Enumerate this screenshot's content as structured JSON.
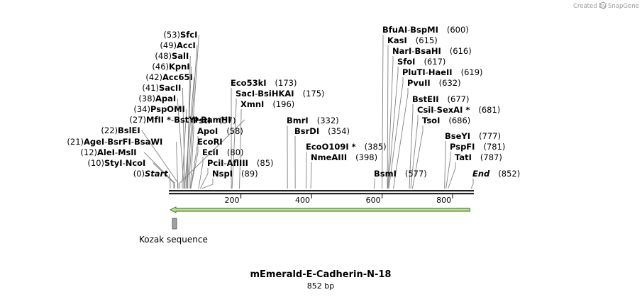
{
  "credit": {
    "created_by": "Created by",
    "brand": "SnapGene"
  },
  "plasmid": {
    "name": "mEmerald-E-Cadherin-N-18",
    "length": "852 bp",
    "total_bp": 852
  },
  "axis": {
    "ticks": [
      200,
      400,
      600,
      800
    ]
  },
  "features": [
    {
      "label": "Kozak sequence",
      "type": "misc",
      "start": 0,
      "end": 10
    },
    {
      "label": "",
      "type": "orf",
      "start": 0,
      "end": 849,
      "direction": "reverse",
      "color": "#b9e08c"
    }
  ],
  "sites": [
    {
      "group": "left",
      "parts": [
        [
          "Start"
        ]
      ],
      "pos": "(0)",
      "cut": 0,
      "italic": true
    },
    {
      "group": "left",
      "parts": [
        [
          "StyI"
        ],
        [
          "NcoI"
        ]
      ],
      "pos": "(10)",
      "cut": 10
    },
    {
      "group": "left",
      "parts": [
        [
          "AleI"
        ],
        [
          "MslI"
        ]
      ],
      "pos": "(12)",
      "cut": 12
    },
    {
      "group": "left",
      "parts": [
        [
          "AgeI"
        ],
        [
          "BsrFI"
        ],
        [
          "BsaWI"
        ]
      ],
      "pos": "(21)",
      "cut": 21
    },
    {
      "group": "left",
      "parts": [
        [
          "BslEI"
        ]
      ],
      "pos": "(22)",
      "cut": 22
    },
    {
      "group": "left",
      "parts": [
        [
          "MfII *"
        ],
        [
          "BstYI"
        ],
        [
          "BamHI"
        ]
      ],
      "pos": "(27)",
      "cut": 27
    },
    {
      "group": "left",
      "parts": [
        [
          "PspOMI"
        ]
      ],
      "pos": "(34)",
      "cut": 34
    },
    {
      "group": "left",
      "parts": [
        [
          "ApaI"
        ]
      ],
      "pos": "(38)",
      "cut": 38
    },
    {
      "group": "left",
      "parts": [
        [
          "SacII"
        ]
      ],
      "pos": "(41)",
      "cut": 41
    },
    {
      "group": "left",
      "parts": [
        [
          "Acc65I"
        ]
      ],
      "pos": "(42)",
      "cut": 42
    },
    {
      "group": "left",
      "parts": [
        [
          "KpnI"
        ]
      ],
      "pos": "(46)",
      "cut": 46
    },
    {
      "group": "left",
      "parts": [
        [
          "SalI"
        ]
      ],
      "pos": "(48)",
      "cut": 48
    },
    {
      "group": "left",
      "parts": [
        [
          "AccI"
        ]
      ],
      "pos": "(49)",
      "cut": 49
    },
    {
      "group": "left",
      "parts": [
        [
          "SfcI"
        ]
      ],
      "pos": "(53)",
      "cut": 53
    },
    {
      "group": "right",
      "parts": [
        [
          "PstI"
        ]
      ],
      "pos": "(57)",
      "cut": 57
    },
    {
      "group": "right",
      "parts": [
        [
          "ApoI"
        ]
      ],
      "pos": "(58)",
      "cut": 58
    },
    {
      "group": "right",
      "parts": [
        [
          "EcoRI"
        ]
      ],
      "pos": "",
      "cut": 58
    },
    {
      "group": "right",
      "parts": [
        [
          "EciI"
        ]
      ],
      "pos": "(80)",
      "cut": 80
    },
    {
      "group": "right",
      "parts": [
        [
          "PciI"
        ],
        [
          "AflIII"
        ]
      ],
      "pos": "(85)",
      "cut": 85
    },
    {
      "group": "right",
      "parts": [
        [
          "NspI"
        ]
      ],
      "pos": "(89)",
      "cut": 89
    },
    {
      "group": "right",
      "parts": [
        [
          "Eco53kI"
        ]
      ],
      "pos": "(173)",
      "cut": 173
    },
    {
      "group": "right",
      "parts": [
        [
          "SacI"
        ],
        [
          "BsiHKAI"
        ]
      ],
      "pos": "(175)",
      "cut": 175
    },
    {
      "group": "right",
      "parts": [
        [
          "XmnI"
        ]
      ],
      "pos": "(196)",
      "cut": 196
    },
    {
      "group": "right",
      "parts": [
        [
          "BmrI"
        ]
      ],
      "pos": "(332)",
      "cut": 332
    },
    {
      "group": "right",
      "parts": [
        [
          "BsrDI"
        ]
      ],
      "pos": "(354)",
      "cut": 354
    },
    {
      "group": "right",
      "parts": [
        [
          "EcoO109I *"
        ]
      ],
      "pos": "(385)",
      "cut": 385
    },
    {
      "group": "right",
      "parts": [
        [
          "NmeAIII"
        ]
      ],
      "pos": "(398)",
      "cut": 398
    },
    {
      "group": "right",
      "parts": [
        [
          "BsmI"
        ]
      ],
      "pos": "(577)",
      "cut": 577
    },
    {
      "group": "right",
      "parts": [
        [
          "BfuAI"
        ],
        [
          "BspMI"
        ]
      ],
      "pos": "(600)",
      "cut": 600
    },
    {
      "group": "right",
      "parts": [
        [
          "KasI"
        ]
      ],
      "pos": "(615)",
      "cut": 615
    },
    {
      "group": "right",
      "parts": [
        [
          "NarI"
        ],
        [
          "BsaHI"
        ]
      ],
      "pos": "(616)",
      "cut": 616
    },
    {
      "group": "right",
      "parts": [
        [
          "SfoI"
        ]
      ],
      "pos": "(617)",
      "cut": 617
    },
    {
      "group": "right",
      "parts": [
        [
          "PluTI"
        ],
        [
          "HaeII"
        ]
      ],
      "pos": "(619)",
      "cut": 619
    },
    {
      "group": "right",
      "parts": [
        [
          "PvuII"
        ]
      ],
      "pos": "(632)",
      "cut": 632
    },
    {
      "group": "right",
      "parts": [
        [
          "BstEII"
        ]
      ],
      "pos": "(677)",
      "cut": 677
    },
    {
      "group": "right",
      "parts": [
        [
          "CsiI"
        ],
        [
          "SexAI *"
        ]
      ],
      "pos": "(681)",
      "cut": 681
    },
    {
      "group": "right",
      "parts": [
        [
          "TsoI"
        ]
      ],
      "pos": "(686)",
      "cut": 686
    },
    {
      "group": "right",
      "parts": [
        [
          "BseYI"
        ]
      ],
      "pos": "(777)",
      "cut": 777
    },
    {
      "group": "right",
      "parts": [
        [
          "PspFI"
        ]
      ],
      "pos": "(781)",
      "cut": 781
    },
    {
      "group": "right",
      "parts": [
        [
          "TatI"
        ]
      ],
      "pos": "(787)",
      "cut": 787
    },
    {
      "group": "right",
      "parts": [
        [
          "End"
        ]
      ],
      "pos": "(852)",
      "cut": 852,
      "italic": true
    }
  ]
}
